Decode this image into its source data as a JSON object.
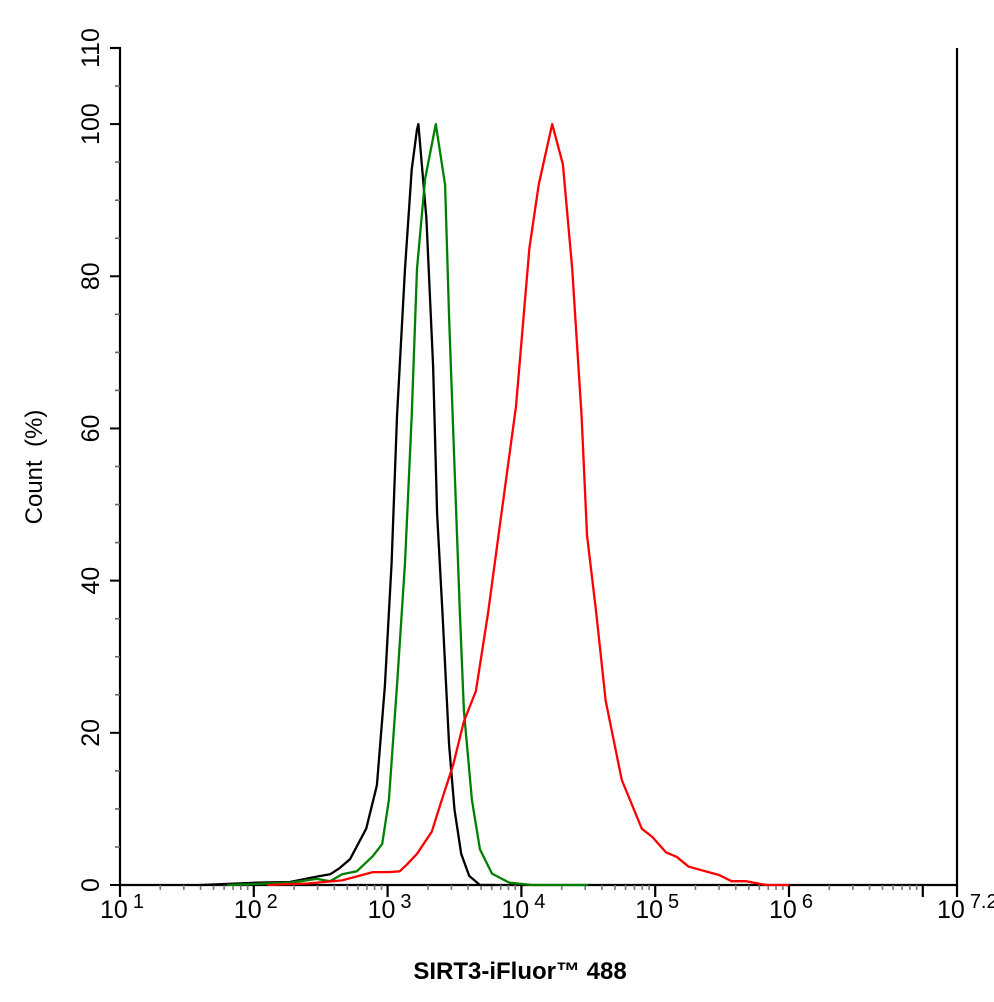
{
  "chart_data": {
    "type": "line",
    "title": "",
    "xlabel": "SIRT3-iFluor™ 488",
    "ylabel": "Count  (%)",
    "xscale": "log10",
    "xlim_log10": [
      1,
      7.2
    ],
    "ylim": [
      0,
      110
    ],
    "grid": false,
    "x_tick_labels": [
      {
        "base": "10",
        "exp": "1",
        "log": 1
      },
      {
        "base": "10",
        "exp": "2",
        "log": 2
      },
      {
        "base": "10",
        "exp": "3",
        "log": 3
      },
      {
        "base": "10",
        "exp": "4",
        "log": 4
      },
      {
        "base": "10",
        "exp": "5",
        "log": 5
      },
      {
        "base": "10",
        "exp": "6",
        "log": 6
      },
      {
        "base": "10",
        "exp": "7.2",
        "log": 7.2
      }
    ],
    "y_tick_labels": [
      "0",
      "20",
      "40",
      "60",
      "80",
      "100",
      "110"
    ],
    "series": [
      {
        "name": "black",
        "color": "#000000",
        "log10_x": [
          1.6,
          2.02,
          2.27,
          2.47,
          2.57,
          2.64,
          2.72,
          2.84,
          2.92,
          2.98,
          3.03,
          3.07,
          3.13,
          3.18,
          3.22,
          3.23,
          3.29,
          3.34,
          3.37,
          3.41,
          3.46,
          3.5,
          3.55,
          3.61,
          3.69,
          3.8
        ],
        "y": [
          0,
          0.3,
          0.4,
          1.1,
          1.4,
          2.2,
          3.4,
          7.4,
          13.1,
          26.2,
          42.3,
          61.6,
          81,
          94,
          99.3,
          100,
          87.6,
          68.2,
          48.8,
          35.7,
          18.4,
          9.9,
          4.1,
          1.2,
          0,
          0
        ]
      },
      {
        "name": "green",
        "color": "#008000",
        "log10_x": [
          1.8,
          2.27,
          2.47,
          2.57,
          2.66,
          2.77,
          2.89,
          2.96,
          3.01,
          3.07,
          3.13,
          3.18,
          3.22,
          3.28,
          3.36,
          3.43,
          3.46,
          3.5,
          3.54,
          3.57,
          3.63,
          3.69,
          3.78,
          3.91,
          4.08,
          4.5
        ],
        "y": [
          0,
          0.3,
          0.8,
          0.5,
          1.4,
          1.8,
          3.8,
          5.4,
          11.2,
          26.2,
          42.3,
          61.6,
          81,
          92.8,
          100,
          92,
          74.6,
          55,
          35.7,
          22.9,
          11.2,
          4.7,
          1.5,
          0.3,
          0,
          0
        ]
      },
      {
        "name": "red",
        "color": "#ff0000",
        "log10_x": [
          2.1,
          2.4,
          2.66,
          2.89,
          3.01,
          3.09,
          3.14,
          3.22,
          3.33,
          3.4,
          3.49,
          3.57,
          3.66,
          3.75,
          3.84,
          3.96,
          4.06,
          4.13,
          4.23,
          4.31,
          4.38,
          4.45,
          4.49,
          4.56,
          4.63,
          4.75,
          4.9,
          4.98,
          5.08,
          5.16,
          5.25,
          5.48,
          5.57,
          5.68,
          5.83,
          6.0
        ],
        "y": [
          0,
          0.2,
          0.6,
          1.7,
          1.7,
          1.8,
          2.6,
          4.1,
          7.0,
          10.9,
          15.8,
          21.5,
          25.5,
          35.7,
          47.4,
          62.9,
          83.7,
          92.1,
          100,
          94.7,
          81,
          61.6,
          46,
          35.7,
          24.2,
          13.8,
          7.4,
          6.3,
          4.3,
          3.7,
          2.4,
          1.3,
          0.5,
          0.5,
          0,
          0
        ]
      }
    ]
  }
}
